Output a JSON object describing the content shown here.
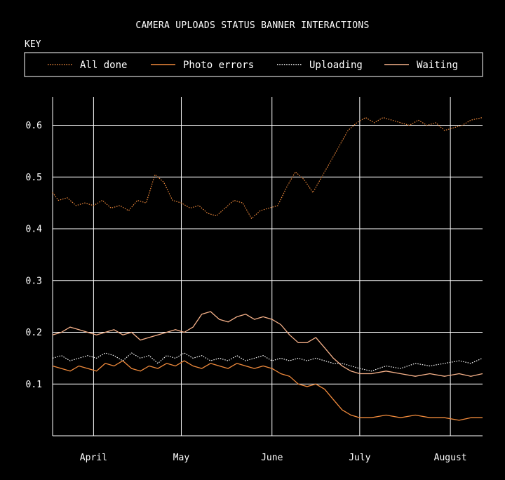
{
  "chart_data": {
    "type": "line",
    "title": "CAMERA UPLOADS STATUS BANNER INTERACTIONS",
    "legend_title": "KEY",
    "legend_placement": "top",
    "grid": true,
    "xlabel": "",
    "ylabel": "",
    "x_range": [
      "2024-03-18",
      "2024-08-12"
    ],
    "ylim": [
      0.0,
      0.655
    ],
    "x_ticks": [
      {
        "date": "2024-04-01",
        "label": "April"
      },
      {
        "date": "2024-05-01",
        "label": "May"
      },
      {
        "date": "2024-06-01",
        "label": "June"
      },
      {
        "date": "2024-07-01",
        "label": "July"
      },
      {
        "date": "2024-08-01",
        "label": "August"
      }
    ],
    "y_ticks": [
      0.1,
      0.2,
      0.3,
      0.4,
      0.5,
      0.6
    ],
    "y_tick_labels": [
      "0.1",
      "0.2",
      "0.3",
      "0.4",
      "0.5",
      "0.6"
    ],
    "series": [
      {
        "name": "All done",
        "color": "#f28b3c",
        "style": "dotted",
        "points": [
          [
            "2024-03-18",
            0.47
          ],
          [
            "2024-03-20",
            0.455
          ],
          [
            "2024-03-23",
            0.46
          ],
          [
            "2024-03-26",
            0.445
          ],
          [
            "2024-03-29",
            0.45
          ],
          [
            "2024-04-01",
            0.445
          ],
          [
            "2024-04-04",
            0.455
          ],
          [
            "2024-04-07",
            0.44
          ],
          [
            "2024-04-10",
            0.445
          ],
          [
            "2024-04-13",
            0.435
          ],
          [
            "2024-04-16",
            0.455
          ],
          [
            "2024-04-19",
            0.45
          ],
          [
            "2024-04-22",
            0.505
          ],
          [
            "2024-04-25",
            0.49
          ],
          [
            "2024-04-28",
            0.455
          ],
          [
            "2024-05-01",
            0.45
          ],
          [
            "2024-05-04",
            0.44
          ],
          [
            "2024-05-07",
            0.445
          ],
          [
            "2024-05-10",
            0.43
          ],
          [
            "2024-05-13",
            0.425
          ],
          [
            "2024-05-16",
            0.44
          ],
          [
            "2024-05-19",
            0.455
          ],
          [
            "2024-05-22",
            0.45
          ],
          [
            "2024-05-25",
            0.42
          ],
          [
            "2024-05-28",
            0.435
          ],
          [
            "2024-05-31",
            0.44
          ],
          [
            "2024-06-03",
            0.445
          ],
          [
            "2024-06-06",
            0.48
          ],
          [
            "2024-06-09",
            0.51
          ],
          [
            "2024-06-12",
            0.495
          ],
          [
            "2024-06-15",
            0.47
          ],
          [
            "2024-06-18",
            0.5
          ],
          [
            "2024-06-21",
            0.53
          ],
          [
            "2024-06-24",
            0.56
          ],
          [
            "2024-06-27",
            0.59
          ],
          [
            "2024-06-30",
            0.605
          ],
          [
            "2024-07-03",
            0.615
          ],
          [
            "2024-07-06",
            0.605
          ],
          [
            "2024-07-09",
            0.615
          ],
          [
            "2024-07-12",
            0.61
          ],
          [
            "2024-07-15",
            0.605
          ],
          [
            "2024-07-18",
            0.6
          ],
          [
            "2024-07-21",
            0.61
          ],
          [
            "2024-07-24",
            0.6
          ],
          [
            "2024-07-27",
            0.605
          ],
          [
            "2024-07-30",
            0.59
          ],
          [
            "2024-08-02",
            0.595
          ],
          [
            "2024-08-05",
            0.6
          ],
          [
            "2024-08-08",
            0.61
          ],
          [
            "2024-08-12",
            0.615
          ]
        ]
      },
      {
        "name": "Photo errors",
        "color": "#f28b3c",
        "style": "solid",
        "points": [
          [
            "2024-03-18",
            0.135
          ],
          [
            "2024-03-21",
            0.13
          ],
          [
            "2024-03-24",
            0.125
          ],
          [
            "2024-03-27",
            0.135
          ],
          [
            "2024-03-30",
            0.13
          ],
          [
            "2024-04-02",
            0.125
          ],
          [
            "2024-04-05",
            0.14
          ],
          [
            "2024-04-08",
            0.135
          ],
          [
            "2024-04-11",
            0.145
          ],
          [
            "2024-04-14",
            0.13
          ],
          [
            "2024-04-17",
            0.125
          ],
          [
            "2024-04-20",
            0.135
          ],
          [
            "2024-04-23",
            0.13
          ],
          [
            "2024-04-26",
            0.14
          ],
          [
            "2024-04-29",
            0.135
          ],
          [
            "2024-05-02",
            0.145
          ],
          [
            "2024-05-05",
            0.135
          ],
          [
            "2024-05-08",
            0.13
          ],
          [
            "2024-05-11",
            0.14
          ],
          [
            "2024-05-14",
            0.135
          ],
          [
            "2024-05-17",
            0.13
          ],
          [
            "2024-05-20",
            0.14
          ],
          [
            "2024-05-23",
            0.135
          ],
          [
            "2024-05-26",
            0.13
          ],
          [
            "2024-05-29",
            0.135
          ],
          [
            "2024-06-01",
            0.13
          ],
          [
            "2024-06-04",
            0.12
          ],
          [
            "2024-06-07",
            0.115
          ],
          [
            "2024-06-10",
            0.1
          ],
          [
            "2024-06-13",
            0.095
          ],
          [
            "2024-06-16",
            0.1
          ],
          [
            "2024-06-19",
            0.09
          ],
          [
            "2024-06-22",
            0.07
          ],
          [
            "2024-06-25",
            0.05
          ],
          [
            "2024-06-28",
            0.04
          ],
          [
            "2024-07-01",
            0.035
          ],
          [
            "2024-07-05",
            0.035
          ],
          [
            "2024-07-10",
            0.04
          ],
          [
            "2024-07-15",
            0.035
          ],
          [
            "2024-07-20",
            0.04
          ],
          [
            "2024-07-25",
            0.035
          ],
          [
            "2024-07-30",
            0.035
          ],
          [
            "2024-08-04",
            0.03
          ],
          [
            "2024-08-08",
            0.035
          ],
          [
            "2024-08-12",
            0.035
          ]
        ]
      },
      {
        "name": "Uploading",
        "color": "#ffffff",
        "style": "dotted",
        "points": [
          [
            "2024-03-18",
            0.15
          ],
          [
            "2024-03-21",
            0.155
          ],
          [
            "2024-03-24",
            0.145
          ],
          [
            "2024-03-27",
            0.15
          ],
          [
            "2024-03-30",
            0.155
          ],
          [
            "2024-04-02",
            0.15
          ],
          [
            "2024-04-05",
            0.16
          ],
          [
            "2024-04-08",
            0.155
          ],
          [
            "2024-04-11",
            0.145
          ],
          [
            "2024-04-14",
            0.16
          ],
          [
            "2024-04-17",
            0.15
          ],
          [
            "2024-04-20",
            0.155
          ],
          [
            "2024-04-23",
            0.14
          ],
          [
            "2024-04-26",
            0.155
          ],
          [
            "2024-04-29",
            0.15
          ],
          [
            "2024-05-02",
            0.16
          ],
          [
            "2024-05-05",
            0.15
          ],
          [
            "2024-05-08",
            0.155
          ],
          [
            "2024-05-11",
            0.145
          ],
          [
            "2024-05-14",
            0.15
          ],
          [
            "2024-05-17",
            0.145
          ],
          [
            "2024-05-20",
            0.155
          ],
          [
            "2024-05-23",
            0.145
          ],
          [
            "2024-05-26",
            0.15
          ],
          [
            "2024-05-29",
            0.155
          ],
          [
            "2024-06-01",
            0.145
          ],
          [
            "2024-06-04",
            0.15
          ],
          [
            "2024-06-07",
            0.145
          ],
          [
            "2024-06-10",
            0.15
          ],
          [
            "2024-06-13",
            0.145
          ],
          [
            "2024-06-16",
            0.15
          ],
          [
            "2024-06-19",
            0.145
          ],
          [
            "2024-06-22",
            0.14
          ],
          [
            "2024-06-25",
            0.14
          ],
          [
            "2024-06-28",
            0.135
          ],
          [
            "2024-07-01",
            0.13
          ],
          [
            "2024-07-05",
            0.125
          ],
          [
            "2024-07-10",
            0.135
          ],
          [
            "2024-07-15",
            0.13
          ],
          [
            "2024-07-20",
            0.14
          ],
          [
            "2024-07-25",
            0.135
          ],
          [
            "2024-07-30",
            0.14
          ],
          [
            "2024-08-04",
            0.145
          ],
          [
            "2024-08-08",
            0.14
          ],
          [
            "2024-08-12",
            0.15
          ]
        ]
      },
      {
        "name": "Waiting",
        "color": "#f7b28a",
        "style": "solid",
        "points": [
          [
            "2024-03-18",
            0.195
          ],
          [
            "2024-03-21",
            0.2
          ],
          [
            "2024-03-24",
            0.21
          ],
          [
            "2024-03-27",
            0.205
          ],
          [
            "2024-03-30",
            0.2
          ],
          [
            "2024-04-02",
            0.195
          ],
          [
            "2024-04-05",
            0.2
          ],
          [
            "2024-04-08",
            0.205
          ],
          [
            "2024-04-11",
            0.195
          ],
          [
            "2024-04-14",
            0.2
          ],
          [
            "2024-04-17",
            0.185
          ],
          [
            "2024-04-20",
            0.19
          ],
          [
            "2024-04-23",
            0.195
          ],
          [
            "2024-04-26",
            0.2
          ],
          [
            "2024-04-29",
            0.205
          ],
          [
            "2024-05-02",
            0.2
          ],
          [
            "2024-05-05",
            0.21
          ],
          [
            "2024-05-08",
            0.235
          ],
          [
            "2024-05-11",
            0.24
          ],
          [
            "2024-05-14",
            0.225
          ],
          [
            "2024-05-17",
            0.22
          ],
          [
            "2024-05-20",
            0.23
          ],
          [
            "2024-05-23",
            0.235
          ],
          [
            "2024-05-26",
            0.225
          ],
          [
            "2024-05-29",
            0.23
          ],
          [
            "2024-06-01",
            0.225
          ],
          [
            "2024-06-04",
            0.215
          ],
          [
            "2024-06-07",
            0.195
          ],
          [
            "2024-06-10",
            0.18
          ],
          [
            "2024-06-13",
            0.18
          ],
          [
            "2024-06-16",
            0.19
          ],
          [
            "2024-06-19",
            0.17
          ],
          [
            "2024-06-22",
            0.15
          ],
          [
            "2024-06-25",
            0.135
          ],
          [
            "2024-06-28",
            0.125
          ],
          [
            "2024-07-01",
            0.12
          ],
          [
            "2024-07-05",
            0.12
          ],
          [
            "2024-07-10",
            0.125
          ],
          [
            "2024-07-15",
            0.12
          ],
          [
            "2024-07-20",
            0.115
          ],
          [
            "2024-07-25",
            0.12
          ],
          [
            "2024-07-30",
            0.115
          ],
          [
            "2024-08-04",
            0.12
          ],
          [
            "2024-08-08",
            0.115
          ],
          [
            "2024-08-12",
            0.12
          ]
        ]
      }
    ]
  }
}
